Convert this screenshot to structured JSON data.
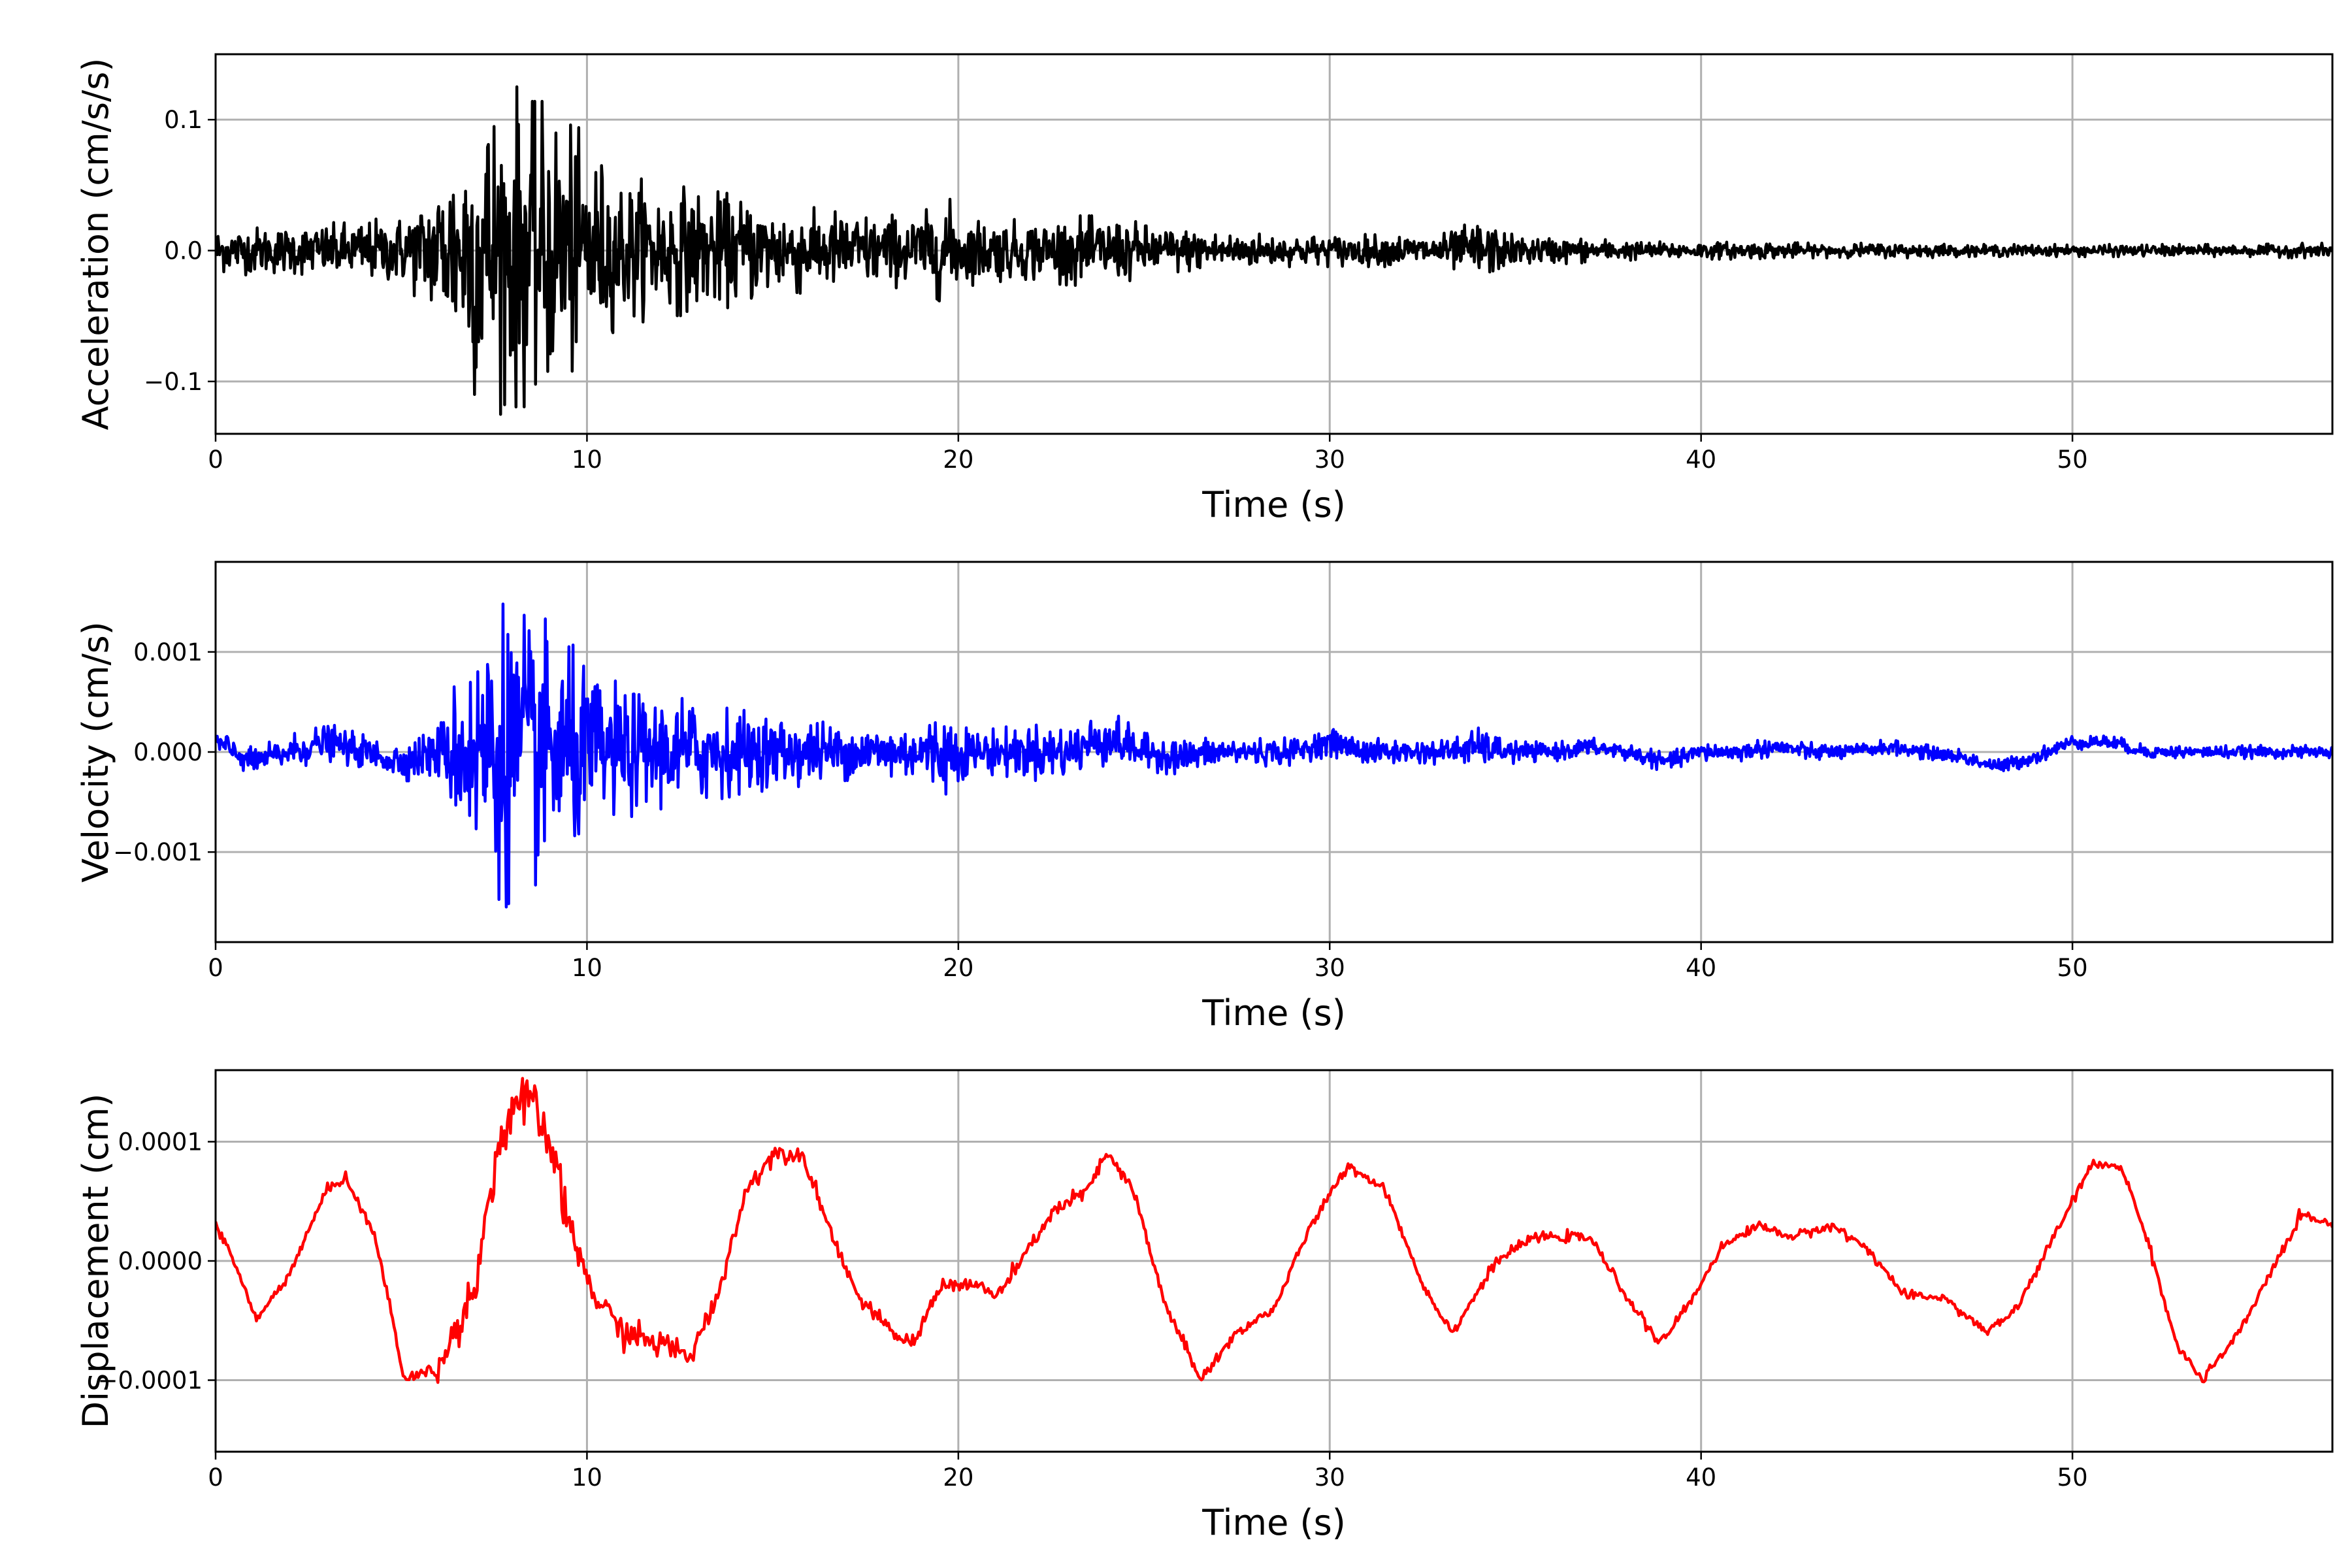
{
  "chart_data": [
    {
      "type": "line",
      "xlabel": "Time (s)",
      "ylabel": "Acceleration (cm/s/s)",
      "xlim": [
        0,
        57
      ],
      "ylim": [
        -0.14,
        0.15
      ],
      "xticks": [
        0,
        10,
        20,
        30,
        40,
        50
      ],
      "xtick_labels": [
        "0",
        "10",
        "20",
        "30",
        "40",
        "50"
      ],
      "yticks": [
        -0.1,
        0.0,
        0.1
      ],
      "ytick_labels": [
        "−0.1",
        "0.0",
        "0.1"
      ],
      "grid": true,
      "color": "#000000",
      "series": [
        {
          "x": [
            0,
            1,
            2,
            3,
            4,
            5,
            5.5,
            6,
            6.5,
            7,
            7.5,
            8,
            8.5,
            9,
            9.5,
            10,
            10.5,
            11,
            12,
            13,
            14,
            15,
            16,
            17,
            18,
            19,
            19.7,
            20,
            21,
            22,
            23,
            24,
            25,
            26,
            27,
            28,
            29,
            30,
            31,
            32,
            33,
            34,
            35,
            36,
            37,
            38,
            39,
            40,
            41,
            42,
            43,
            44,
            45,
            46,
            47,
            48,
            49,
            50,
            51,
            52,
            53,
            54,
            55,
            56,
            57
          ],
          "amplitude": [
            0.018,
            0.02,
            0.02,
            0.022,
            0.025,
            0.028,
            0.04,
            0.06,
            0.09,
            0.12,
            0.13,
            0.135,
            0.12,
            0.12,
            0.11,
            0.09,
            0.07,
            0.06,
            0.055,
            0.05,
            0.045,
            0.04,
            0.035,
            0.032,
            0.03,
            0.03,
            0.045,
            0.03,
            0.025,
            0.025,
            0.028,
            0.028,
            0.022,
            0.018,
            0.016,
            0.014,
            0.013,
            0.013,
            0.013,
            0.013,
            0.013,
            0.025,
            0.012,
            0.011,
            0.01,
            0.008,
            0.007,
            0.007,
            0.007,
            0.007,
            0.006,
            0.006,
            0.006,
            0.006,
            0.005,
            0.005,
            0.005,
            0.005,
            0.005,
            0.005,
            0.005,
            0.005,
            0.005,
            0.006,
            0.006
          ]
        }
      ]
    },
    {
      "type": "line",
      "xlabel": "Time (s)",
      "ylabel": "Velocity (cm/s)",
      "xlim": [
        0,
        57
      ],
      "ylim": [
        -0.0019,
        0.0019
      ],
      "xticks": [
        0,
        10,
        20,
        30,
        40,
        50
      ],
      "xtick_labels": [
        "0",
        "10",
        "20",
        "30",
        "40",
        "50"
      ],
      "yticks": [
        -0.001,
        0.0,
        0.001
      ],
      "ytick_labels": [
        "−0.001",
        "0.000",
        "0.001"
      ],
      "grid": true,
      "color": "#0000ff",
      "series": [
        {
          "x": [
            0,
            1,
            2,
            3,
            4,
            5,
            6,
            6.5,
            7,
            7.5,
            8,
            8.5,
            9,
            9.5,
            10,
            11,
            12,
            13,
            14,
            15,
            16,
            17,
            18,
            19,
            19.7,
            20,
            21,
            22,
            23,
            24,
            25,
            26,
            27,
            28,
            29,
            30,
            31,
            32,
            33,
            34,
            35,
            36,
            37,
            38,
            39,
            40,
            41,
            42,
            43,
            44,
            45,
            46,
            47,
            48,
            49,
            50,
            51,
            52,
            53,
            54,
            55,
            56,
            57
          ],
          "amplitude": [
            0.00015,
            0.00015,
            0.00018,
            0.0002,
            0.00018,
            0.0002,
            0.0003,
            0.0008,
            0.0012,
            0.0015,
            0.0017,
            0.0014,
            0.0014,
            0.0012,
            0.0009,
            0.0007,
            0.0006,
            0.0006,
            0.00045,
            0.0004,
            0.00035,
            0.0003,
            0.0003,
            0.0003,
            0.0005,
            0.0003,
            0.00025,
            0.0003,
            0.0003,
            0.0003,
            0.0002,
            0.0002,
            0.00015,
            0.00015,
            0.00015,
            0.00015,
            0.00015,
            0.00013,
            0.00013,
            0.0002,
            0.00012,
            0.0001,
            0.0001,
            0.0001,
            0.0001,
            0.0001,
            0.0001,
            0.0001,
            0.0001,
            8e-05,
            8e-05,
            8e-05,
            8e-05,
            8e-05,
            8e-05,
            8e-05,
            8e-05,
            7e-05,
            7e-05,
            7e-05,
            7e-05,
            7e-05,
            7e-05
          ],
          "trend": [
            0.0001,
            -0.0001,
            0.0,
            0.0001,
            0.0,
            -0.0001,
            0.0,
            0.0,
            0.0,
            0.0,
            0.0,
            0.0,
            0.0,
            0.0,
            0.0,
            0.0,
            0.0,
            0.0,
            0.0,
            0.0,
            0.0,
            0.0,
            0.0,
            0.0,
            0.0,
            0.0,
            0.0,
            0.0,
            0.0,
            0.00015,
            0.0,
            -5e-05,
            0.0,
            0.0,
            0.0,
            0.0001,
            0.0,
            0.0,
            0.0,
            5e-05,
            0.0,
            0.0,
            5e-05,
            0.0,
            -0.0001,
            0.0,
            0.0,
            5e-05,
            0.0,
            0.0,
            5e-05,
            0.0,
            -5e-05,
            -0.00015,
            -5e-05,
            0.0001,
            0.0001,
            0.0,
            0.0,
            0.0,
            0.0,
            0.0,
            0.0
          ]
        }
      ]
    },
    {
      "type": "line",
      "xlabel": "Time (s)",
      "ylabel": "Displacement (cm)",
      "xlim": [
        0,
        57
      ],
      "ylim": [
        -0.00016,
        0.00016
      ],
      "xticks": [
        0,
        10,
        20,
        30,
        40,
        50
      ],
      "xtick_labels": [
        "0",
        "10",
        "20",
        "30",
        "40",
        "50"
      ],
      "yticks": [
        -0.0001,
        0.0,
        0.0001
      ],
      "ytick_labels": [
        "−0.0001",
        "0.0000",
        "0.0001"
      ],
      "grid": true,
      "color": "#ff0000",
      "series": [
        {
          "x": [
            0,
            0.5,
            1.1,
            2,
            3,
            3.5,
            4.3,
            5.1,
            6,
            7,
            7.5,
            8,
            8.5,
            9,
            9.5,
            10.2,
            11,
            12,
            12.8,
            13.5,
            14.3,
            15,
            15.8,
            16.5,
            17.3,
            18.2,
            18.8,
            19.5,
            20.5,
            21,
            21.5,
            22.5,
            23.5,
            24,
            24.7,
            25.5,
            26.5,
            27.5,
            28.5,
            29.5,
            30.5,
            31.5,
            32.5,
            33.3,
            34.5,
            35.5,
            37,
            38,
            38.9,
            39.8,
            40.5,
            41.5,
            42.5,
            43.5,
            44.5,
            45.5,
            46.5,
            47.7,
            48.5,
            49.5,
            50.5,
            51.3,
            52,
            52.8,
            53.5,
            54.5,
            55.5,
            56.2,
            57
          ],
          "y": [
            3e-05,
            0.0,
            -5e-05,
            -1e-05,
            6e-05,
            7e-05,
            2e-05,
            -0.0001,
            -9e-05,
            -2e-05,
            8e-05,
            0.00013,
            0.00013,
            0.0001,
            3e-05,
            -3e-05,
            -6e-05,
            -7e-05,
            -8e-05,
            -3e-05,
            6e-05,
            9e-05,
            9e-05,
            3e-05,
            -3e-05,
            -6e-05,
            -7e-05,
            -2e-05,
            -2e-05,
            -3e-05,
            -1e-05,
            4e-05,
            6e-05,
            9e-05,
            6e-05,
            -3e-05,
            -0.0001,
            -6e-05,
            -4e-05,
            3e-05,
            8e-05,
            6e-05,
            -2e-05,
            -6e-05,
            0.0,
            2e-05,
            2e-05,
            -3e-05,
            -7e-05,
            -3e-05,
            1e-05,
            3e-05,
            2e-05,
            3e-05,
            1e-05,
            -3e-05,
            -3e-05,
            -6e-05,
            -4e-05,
            2e-05,
            8e-05,
            8e-05,
            2e-05,
            -7e-05,
            -0.0001,
            -6e-05,
            0.0,
            4e-05,
            3e-05
          ],
          "roughness": [
            2e-06,
            2e-06,
            2e-06,
            2e-06,
            2e-06,
            2e-06,
            2e-06,
            3e-06,
            5e-06,
            8e-06,
            1.2e-05,
            1.2e-05,
            1.2e-05,
            1e-05,
            8e-06,
            6e-06,
            6e-06,
            6e-06,
            5e-06,
            4e-06,
            4e-06,
            4e-06,
            3e-06,
            3e-06,
            3e-06,
            3e-06,
            3e-06,
            3e-06,
            3e-06,
            3e-06,
            3e-06,
            3e-06,
            3e-06,
            3e-06,
            3e-06,
            3e-06,
            3e-06,
            2e-06,
            2e-06,
            2e-06,
            2e-06,
            2e-06,
            2e-06,
            2e-06,
            2e-06,
            2e-06,
            2e-06,
            2e-06,
            2e-06,
            2e-06,
            2e-06,
            2e-06,
            2e-06,
            2e-06,
            2e-06,
            2e-06,
            2e-06,
            2e-06,
            2e-06,
            2e-06,
            2e-06,
            2e-06,
            2e-06,
            2e-06,
            2e-06,
            2e-06,
            2e-06,
            2e-06,
            2e-06
          ]
        }
      ]
    }
  ]
}
